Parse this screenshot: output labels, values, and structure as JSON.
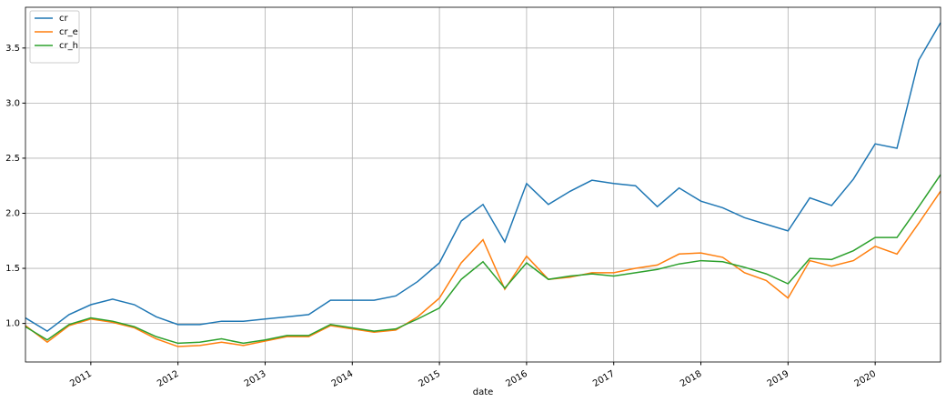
{
  "chart_data": {
    "type": "line",
    "x": [
      2010.25,
      2010.5,
      2010.75,
      2011,
      2011.25,
      2011.5,
      2011.75,
      2012,
      2012.25,
      2012.5,
      2012.75,
      2013,
      2013.25,
      2013.5,
      2013.75,
      2014,
      2014.25,
      2014.5,
      2014.75,
      2015,
      2015.25,
      2015.5,
      2015.75,
      2016,
      2016.25,
      2016.5,
      2016.75,
      2017,
      2017.25,
      2017.5,
      2017.75,
      2018,
      2018.25,
      2018.5,
      2018.75,
      2019,
      2019.25,
      2019.5,
      2019.75,
      2020,
      2020.25,
      2020.5,
      2020.75
    ],
    "series": [
      {
        "name": "cr",
        "color": "#1f77b4",
        "values": [
          1.05,
          0.93,
          1.08,
          1.17,
          1.22,
          1.17,
          1.06,
          0.99,
          0.99,
          1.02,
          1.02,
          1.04,
          1.06,
          1.08,
          1.21,
          1.21,
          1.21,
          1.25,
          1.38,
          1.55,
          1.93,
          2.08,
          1.74,
          2.27,
          2.08,
          2.2,
          2.3,
          2.27,
          2.25,
          2.06,
          2.23,
          2.11,
          2.05,
          1.96,
          1.9,
          1.84,
          2.14,
          2.07,
          2.31,
          2.63,
          2.59,
          3.39,
          3.73
        ]
      },
      {
        "name": "cr_e",
        "color": "#ff7f0e",
        "values": [
          0.98,
          0.83,
          0.98,
          1.04,
          1.01,
          0.96,
          0.86,
          0.79,
          0.8,
          0.83,
          0.8,
          0.84,
          0.88,
          0.88,
          0.98,
          0.95,
          0.92,
          0.94,
          1.06,
          1.23,
          1.55,
          1.76,
          1.31,
          1.61,
          1.4,
          1.42,
          1.46,
          1.46,
          1.5,
          1.53,
          1.63,
          1.64,
          1.6,
          1.46,
          1.39,
          1.23,
          1.57,
          1.52,
          1.57,
          1.7,
          1.63,
          1.91,
          2.2
        ]
      },
      {
        "name": "cr_h",
        "color": "#2ca02c",
        "values": [
          0.97,
          0.85,
          0.99,
          1.05,
          1.02,
          0.97,
          0.88,
          0.82,
          0.83,
          0.86,
          0.82,
          0.85,
          0.89,
          0.89,
          0.99,
          0.96,
          0.93,
          0.95,
          1.04,
          1.14,
          1.4,
          1.56,
          1.32,
          1.55,
          1.4,
          1.43,
          1.45,
          1.43,
          1.46,
          1.49,
          1.54,
          1.57,
          1.56,
          1.51,
          1.45,
          1.36,
          1.59,
          1.58,
          1.66,
          1.78,
          1.78,
          2.06,
          2.35
        ]
      }
    ],
    "xlabel": "date",
    "xlim": [
      2010.25,
      2020.75
    ],
    "xticks": [
      2011,
      2012,
      2013,
      2014,
      2015,
      2016,
      2017,
      2018,
      2019,
      2020
    ],
    "ylim": [
      0.65,
      3.87
    ],
    "yticks": [
      {
        "value": 1,
        "label": "1.0"
      },
      {
        "value": 1.5,
        "label": "1.5"
      },
      {
        "value": 2,
        "label": "2.0"
      },
      {
        "value": 2.5,
        "label": "2.5"
      },
      {
        "value": 3,
        "label": "3.0"
      },
      {
        "value": 3.5,
        "label": "3.5"
      }
    ],
    "grid": true,
    "legend": "upper-left"
  }
}
